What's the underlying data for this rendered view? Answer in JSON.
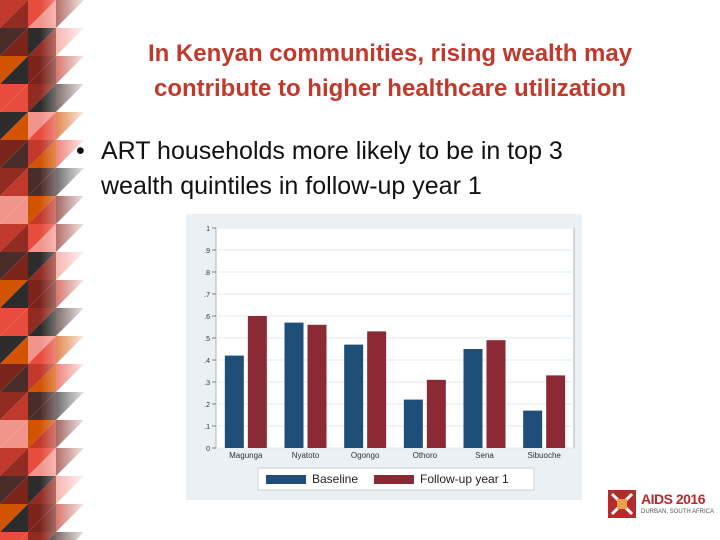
{
  "slide": {
    "title_line1": "In Kenyan communities, rising wealth may",
    "title_line2": "contribute to higher healthcare utilization",
    "bullet_symbol": "•",
    "bullet_text_line1": "ART households more likely to be in top 3",
    "bullet_text_line2": "wealth quintiles in follow-up year 1",
    "accent_color": "#c0392b"
  },
  "logo": {
    "name": "AIDS 2016",
    "subtitle": "DURBAN, SOUTH AFRICA"
  },
  "chart_data": {
    "type": "bar",
    "categories": [
      "Magunga",
      "Nyatoto",
      "Ogongo",
      "Othoro",
      "Sena",
      "Sibuoche"
    ],
    "series": [
      {
        "name": "Baseline",
        "color": "#1f4e79",
        "values": [
          0.42,
          0.57,
          0.47,
          0.22,
          0.45,
          0.17
        ]
      },
      {
        "name": "Follow-up year 1",
        "color": "#8b2a35",
        "values": [
          0.6,
          0.56,
          0.53,
          0.31,
          0.49,
          0.33
        ]
      }
    ],
    "y_ticks": [
      "0",
      ".1",
      ".2",
      ".3",
      ".4",
      ".5",
      ".6",
      ".7",
      ".8",
      ".9",
      "1"
    ],
    "ylim": [
      0,
      1
    ],
    "grid": true,
    "legend_position": "bottom",
    "title": "",
    "xlabel": "",
    "ylabel": ""
  }
}
